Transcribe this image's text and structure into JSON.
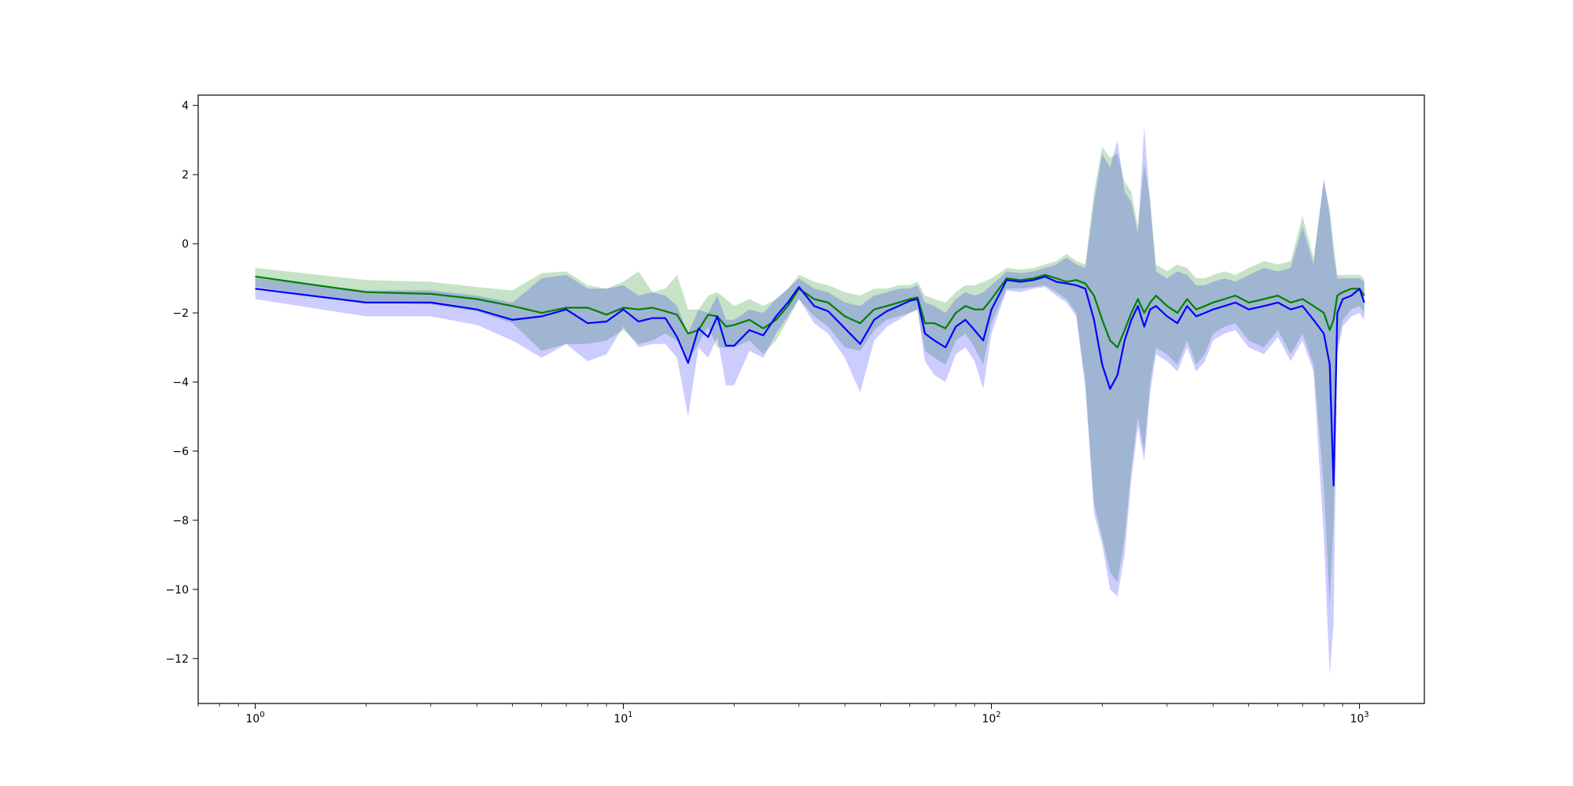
{
  "chart_data": {
    "type": "line",
    "title": "",
    "xlabel": "",
    "ylabel": "",
    "xscale": "log",
    "xlim": [
      0.7,
      1500
    ],
    "ylim": [
      -13.3,
      4.3
    ],
    "grid": false,
    "legend": "none",
    "x_ticks": [
      {
        "value": 1,
        "base": "10",
        "exp": "0"
      },
      {
        "value": 10,
        "base": "10",
        "exp": "1"
      },
      {
        "value": 100,
        "base": "10",
        "exp": "2"
      },
      {
        "value": 1000,
        "base": "10",
        "exp": "3"
      }
    ],
    "y_ticks": [
      {
        "value": 4,
        "label": "4"
      },
      {
        "value": 2,
        "label": "2"
      },
      {
        "value": 0,
        "label": "0"
      },
      {
        "value": -2,
        "label": "−2"
      },
      {
        "value": -4,
        "label": "−4"
      },
      {
        "value": -6,
        "label": "−6"
      },
      {
        "value": -8,
        "label": "−8"
      },
      {
        "value": -10,
        "label": "−10"
      },
      {
        "value": -12,
        "label": "−12"
      }
    ],
    "series": [
      {
        "color": "#008000",
        "band_color": "#008000",
        "band_opacity": 0.22,
        "x": [
          1,
          2,
          3,
          4,
          5,
          6,
          7,
          8,
          9,
          10,
          11,
          12,
          13,
          14,
          15,
          16,
          17,
          18,
          19,
          20,
          22,
          24,
          26,
          28,
          30,
          33,
          36,
          40,
          44,
          48,
          52,
          56,
          60,
          63,
          66,
          70,
          75,
          80,
          85,
          90,
          95,
          100,
          110,
          120,
          130,
          140,
          150,
          160,
          170,
          180,
          190,
          200,
          210,
          220,
          230,
          240,
          250,
          260,
          270,
          280,
          300,
          320,
          340,
          360,
          380,
          400,
          430,
          460,
          500,
          550,
          600,
          650,
          700,
          750,
          800,
          830,
          850,
          870,
          900,
          950,
          1000,
          1030
        ],
        "y": [
          -0.95,
          -1.4,
          -1.45,
          -1.6,
          -1.8,
          -2.0,
          -1.85,
          -1.85,
          -2.05,
          -1.85,
          -1.9,
          -1.85,
          -1.95,
          -2.05,
          -2.6,
          -2.5,
          -2.05,
          -2.1,
          -2.4,
          -2.35,
          -2.2,
          -2.45,
          -2.2,
          -1.8,
          -1.3,
          -1.6,
          -1.7,
          -2.1,
          -2.3,
          -1.9,
          -1.8,
          -1.7,
          -1.6,
          -1.55,
          -2.3,
          -2.3,
          -2.45,
          -2.0,
          -1.8,
          -1.9,
          -1.9,
          -1.6,
          -1.0,
          -1.05,
          -1.0,
          -0.9,
          -1.0,
          -1.1,
          -1.05,
          -1.15,
          -1.5,
          -2.2,
          -2.8,
          -3.0,
          -2.5,
          -2.0,
          -1.6,
          -2.0,
          -1.7,
          -1.5,
          -1.8,
          -2.0,
          -1.6,
          -1.9,
          -1.8,
          -1.7,
          -1.6,
          -1.5,
          -1.7,
          -1.6,
          -1.5,
          -1.7,
          -1.6,
          -1.8,
          -2.0,
          -2.5,
          -2.2,
          -1.5,
          -1.4,
          -1.3,
          -1.3,
          -1.5
        ],
        "low": [
          -1.25,
          -1.7,
          -1.75,
          -1.95,
          -2.3,
          -3.1,
          -2.9,
          -2.9,
          -2.8,
          -2.5,
          -2.9,
          -2.8,
          -2.6,
          -2.8,
          -3.4,
          -2.9,
          -2.4,
          -3.0,
          -3.0,
          -3.0,
          -2.8,
          -3.2,
          -2.8,
          -2.2,
          -1.6,
          -2.1,
          -2.4,
          -3.0,
          -3.1,
          -2.5,
          -2.2,
          -2.1,
          -2.0,
          -1.9,
          -3.1,
          -3.3,
          -3.5,
          -2.8,
          -2.6,
          -3.0,
          -3.5,
          -2.3,
          -1.3,
          -1.3,
          -1.25,
          -1.2,
          -1.4,
          -1.6,
          -2.0,
          -4.0,
          -7.5,
          -8.5,
          -9.5,
          -9.8,
          -8.5,
          -6.5,
          -5.0,
          -6.0,
          -4.0,
          -3.0,
          -3.2,
          -3.5,
          -2.8,
          -3.5,
          -3.2,
          -2.6,
          -2.4,
          -2.3,
          -2.8,
          -3.0,
          -2.5,
          -3.2,
          -2.6,
          -3.5,
          -7.0,
          -10.5,
          -8.0,
          -3.0,
          -2.2,
          -1.9,
          -1.8,
          -2.0
        ],
        "high": [
          -0.7,
          -1.05,
          -1.1,
          -1.25,
          -1.35,
          -0.85,
          -0.8,
          -1.2,
          -1.3,
          -1.1,
          -0.8,
          -1.4,
          -1.3,
          -0.9,
          -1.9,
          -1.9,
          -1.5,
          -1.4,
          -1.6,
          -1.8,
          -1.6,
          -1.8,
          -1.6,
          -1.3,
          -0.9,
          -1.1,
          -1.2,
          -1.4,
          -1.5,
          -1.3,
          -1.3,
          -1.2,
          -1.2,
          -1.1,
          -1.5,
          -1.6,
          -1.7,
          -1.4,
          -1.2,
          -1.2,
          -1.1,
          -1.0,
          -0.7,
          -0.75,
          -0.7,
          -0.6,
          -0.5,
          -0.3,
          -0.5,
          -0.6,
          1.5,
          2.8,
          2.5,
          2.6,
          1.8,
          1.5,
          0.5,
          2.3,
          1.3,
          -0.6,
          -0.8,
          -0.6,
          -0.7,
          -1.0,
          -1.0,
          -0.9,
          -0.8,
          -0.9,
          -0.7,
          -0.5,
          -0.6,
          -0.5,
          0.8,
          -0.4,
          1.8,
          1.0,
          0.0,
          -0.9,
          -0.9,
          -0.9,
          -0.9,
          -1.0
        ]
      },
      {
        "color": "#0000ff",
        "band_color": "#0000ff",
        "band_opacity": 0.2,
        "x": [
          1,
          2,
          3,
          4,
          5,
          6,
          7,
          8,
          9,
          10,
          11,
          12,
          13,
          14,
          15,
          16,
          17,
          18,
          19,
          20,
          22,
          24,
          26,
          28,
          30,
          33,
          36,
          40,
          44,
          48,
          52,
          56,
          60,
          63,
          66,
          70,
          75,
          80,
          85,
          90,
          95,
          100,
          110,
          120,
          130,
          140,
          150,
          160,
          170,
          180,
          190,
          200,
          210,
          220,
          230,
          240,
          250,
          260,
          270,
          280,
          300,
          320,
          340,
          360,
          380,
          400,
          430,
          460,
          500,
          550,
          600,
          650,
          700,
          750,
          800,
          830,
          850,
          870,
          900,
          950,
          1000,
          1030
        ],
        "y": [
          -1.3,
          -1.7,
          -1.7,
          -1.9,
          -2.2,
          -2.1,
          -1.9,
          -2.3,
          -2.25,
          -1.9,
          -2.25,
          -2.15,
          -2.15,
          -2.7,
          -3.45,
          -2.45,
          -2.7,
          -2.1,
          -2.95,
          -2.95,
          -2.5,
          -2.65,
          -2.1,
          -1.7,
          -1.25,
          -1.8,
          -1.95,
          -2.45,
          -2.9,
          -2.2,
          -1.95,
          -1.8,
          -1.65,
          -1.6,
          -2.6,
          -2.8,
          -3.0,
          -2.4,
          -2.2,
          -2.5,
          -2.8,
          -1.9,
          -1.05,
          -1.1,
          -1.05,
          -0.95,
          -1.1,
          -1.15,
          -1.2,
          -1.3,
          -2.2,
          -3.5,
          -4.2,
          -3.8,
          -2.8,
          -2.2,
          -1.8,
          -2.4,
          -1.9,
          -1.8,
          -2.1,
          -2.3,
          -1.8,
          -2.1,
          -2.0,
          -1.9,
          -1.8,
          -1.7,
          -1.9,
          -1.8,
          -1.7,
          -1.9,
          -1.8,
          -2.2,
          -2.6,
          -3.5,
          -7.0,
          -2.0,
          -1.6,
          -1.5,
          -1.3,
          -1.7
        ],
        "low": [
          -1.6,
          -2.1,
          -2.1,
          -2.35,
          -2.8,
          -3.3,
          -2.9,
          -3.4,
          -3.2,
          -2.4,
          -3.0,
          -2.9,
          -2.9,
          -3.3,
          -5.0,
          -3.0,
          -3.3,
          -2.7,
          -4.1,
          -4.1,
          -3.1,
          -3.3,
          -2.6,
          -2.1,
          -1.6,
          -2.3,
          -2.6,
          -3.3,
          -4.3,
          -2.8,
          -2.4,
          -2.2,
          -2.0,
          -1.9,
          -3.4,
          -3.8,
          -4.0,
          -3.2,
          -3.0,
          -3.4,
          -4.2,
          -2.6,
          -1.35,
          -1.4,
          -1.3,
          -1.25,
          -1.5,
          -1.7,
          -2.1,
          -4.2,
          -7.8,
          -8.7,
          -10.0,
          -10.2,
          -9.0,
          -6.8,
          -5.3,
          -6.3,
          -4.3,
          -3.2,
          -3.4,
          -3.7,
          -3.0,
          -3.7,
          -3.4,
          -2.8,
          -2.6,
          -2.5,
          -3.0,
          -3.2,
          -2.7,
          -3.4,
          -2.8,
          -3.7,
          -8.5,
          -12.5,
          -11.0,
          -3.2,
          -2.4,
          -2.1,
          -2.0,
          -2.2
        ],
        "high": [
          -1.0,
          -1.35,
          -1.35,
          -1.5,
          -1.7,
          -1.0,
          -0.9,
          -1.3,
          -1.3,
          -1.2,
          -1.5,
          -1.4,
          -1.5,
          -1.8,
          -2.6,
          -1.9,
          -2.0,
          -1.5,
          -2.2,
          -2.2,
          -1.9,
          -2.0,
          -1.6,
          -1.3,
          -1.0,
          -1.3,
          -1.4,
          -1.7,
          -1.8,
          -1.5,
          -1.4,
          -1.3,
          -1.3,
          -1.2,
          -1.7,
          -1.8,
          -2.0,
          -1.6,
          -1.4,
          -1.5,
          -1.4,
          -1.2,
          -0.8,
          -0.85,
          -0.8,
          -0.7,
          -0.6,
          -0.4,
          -0.6,
          -0.7,
          1.2,
          2.6,
          2.2,
          3.0,
          1.5,
          1.2,
          0.3,
          3.4,
          1.1,
          -0.8,
          -1.0,
          -0.8,
          -0.9,
          -1.2,
          -1.2,
          -1.1,
          -1.0,
          -1.1,
          -0.9,
          -0.7,
          -0.8,
          -0.7,
          0.5,
          -0.6,
          1.9,
          0.8,
          -0.3,
          -1.0,
          -1.0,
          -1.0,
          -1.0,
          -1.1
        ]
      }
    ]
  }
}
